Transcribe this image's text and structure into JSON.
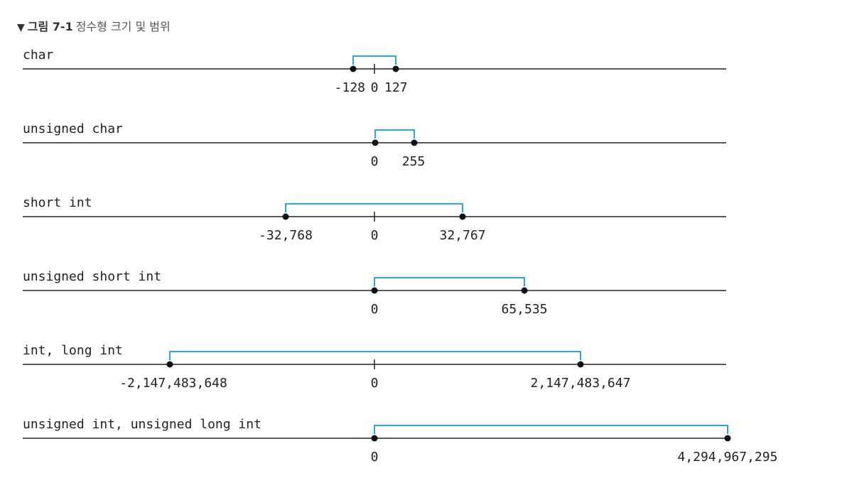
{
  "caption": {
    "marker": "▼",
    "label": "그림 7-1",
    "title": "정수형 크기 및 범위"
  },
  "colors": {
    "axis": "#222222",
    "bracket": "#29a8e0",
    "dot": "#111111"
  },
  "rows": [
    {
      "type_name": "char",
      "show_zero_tick": true,
      "endpoints": [
        {
          "value": -128,
          "label": "-128"
        },
        {
          "value": 127,
          "label": "127"
        }
      ],
      "zero_label": "0"
    },
    {
      "type_name": "unsigned char",
      "show_zero_tick": false,
      "endpoints": [
        {
          "value": 0,
          "label": "0"
        },
        {
          "value": 255,
          "label": "255"
        }
      ],
      "zero_label": ""
    },
    {
      "type_name": "short int",
      "show_zero_tick": true,
      "endpoints": [
        {
          "value": -32768,
          "label": "-32,768"
        },
        {
          "value": 32767,
          "label": "32,767"
        }
      ],
      "zero_label": "0"
    },
    {
      "type_name": "unsigned short int",
      "show_zero_tick": false,
      "endpoints": [
        {
          "value": 0,
          "label": "0"
        },
        {
          "value": 65535,
          "label": "65,535"
        }
      ],
      "zero_label": ""
    },
    {
      "type_name": "int, long int",
      "show_zero_tick": true,
      "endpoints": [
        {
          "value": -2147483648,
          "label": "-2,147,483,648"
        },
        {
          "value": 2147483647,
          "label": "2,147,483,647"
        }
      ],
      "zero_label": "0"
    },
    {
      "type_name": "unsigned int, unsigned long int",
      "show_zero_tick": false,
      "endpoints": [
        {
          "value": 0,
          "label": "0"
        },
        {
          "value": 4294967295,
          "label": "4,294,967,295"
        }
      ],
      "zero_label": ""
    }
  ]
}
